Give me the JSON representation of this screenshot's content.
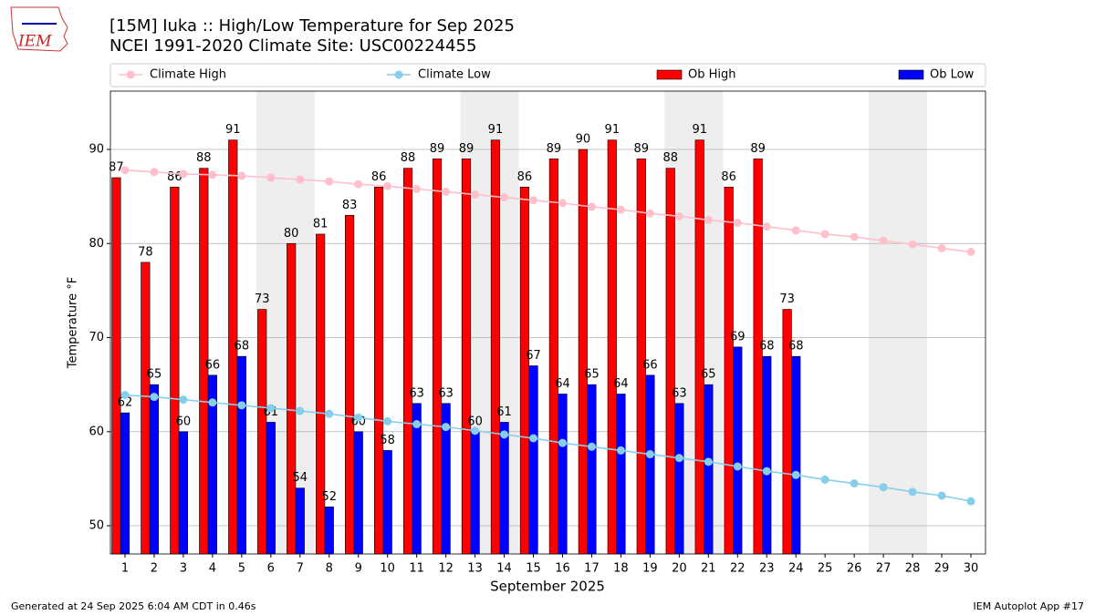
{
  "logo_text": "IEM",
  "chart_data": {
    "type": "bar",
    "title": "[15M] Iuka :: High/Low Temperature for Sep 2025",
    "subtitle": "NCEI 1991-2020 Climate Site: USC00224455",
    "xlabel": "September 2025",
    "ylabel": "Temperature °F",
    "x": [
      1,
      2,
      3,
      4,
      5,
      6,
      7,
      8,
      9,
      10,
      11,
      12,
      13,
      14,
      15,
      16,
      17,
      18,
      19,
      20,
      21,
      22,
      23,
      24,
      25,
      26,
      27,
      28,
      29,
      30
    ],
    "xlim": [
      0.5,
      30.5
    ],
    "xticks": [
      1,
      2,
      3,
      4,
      5,
      6,
      7,
      8,
      9,
      10,
      11,
      12,
      13,
      14,
      15,
      16,
      17,
      18,
      19,
      20,
      21,
      22,
      23,
      24,
      25,
      26,
      27,
      28,
      29,
      30
    ],
    "ylim": [
      47,
      96.2
    ],
    "yticks": [
      50,
      60,
      70,
      80,
      90
    ],
    "grid": true,
    "shaded_days": [
      6,
      7,
      13,
      14,
      20,
      21,
      27,
      28
    ],
    "series": [
      {
        "name": "Climate High",
        "kind": "line",
        "color": "#ffc0cb",
        "values": [
          87.8,
          87.6,
          87.4,
          87.3,
          87.2,
          87.0,
          86.8,
          86.6,
          86.3,
          86.1,
          85.8,
          85.5,
          85.2,
          84.9,
          84.6,
          84.3,
          83.9,
          83.6,
          83.2,
          82.9,
          82.5,
          82.2,
          81.8,
          81.4,
          81.0,
          80.7,
          80.3,
          79.9,
          79.5,
          79.1
        ]
      },
      {
        "name": "Climate Low",
        "kind": "line",
        "color": "#87ceeb",
        "values": [
          63.9,
          63.7,
          63.4,
          63.1,
          62.8,
          62.5,
          62.2,
          61.9,
          61.5,
          61.1,
          60.8,
          60.5,
          60.1,
          59.7,
          59.3,
          58.8,
          58.4,
          58.0,
          57.6,
          57.2,
          56.8,
          56.3,
          55.8,
          55.4,
          54.9,
          54.5,
          54.1,
          53.6,
          53.2,
          52.6
        ]
      },
      {
        "name": "Ob High",
        "kind": "bar",
        "color": "#ff0000",
        "offset": -0.3,
        "values": [
          87,
          78,
          86,
          88,
          91,
          73,
          80,
          81,
          83,
          86,
          88,
          89,
          89,
          91,
          86,
          89,
          90,
          91,
          89,
          88,
          91,
          86,
          89,
          73,
          null,
          null,
          null,
          null,
          null,
          null
        ]
      },
      {
        "name": "Ob Low",
        "kind": "bar",
        "color": "#0000ff",
        "offset": 0,
        "values": [
          62,
          65,
          60,
          66,
          68,
          61,
          54,
          52,
          60,
          58,
          63,
          63,
          60,
          61,
          67,
          64,
          65,
          64,
          66,
          63,
          65,
          69,
          68,
          68,
          null,
          null,
          null,
          null,
          null,
          null
        ]
      }
    ],
    "footer_left": "Generated at 24 Sep 2025 6:04 AM CDT in 0.46s",
    "footer_right": "IEM Autoplot App #17"
  }
}
